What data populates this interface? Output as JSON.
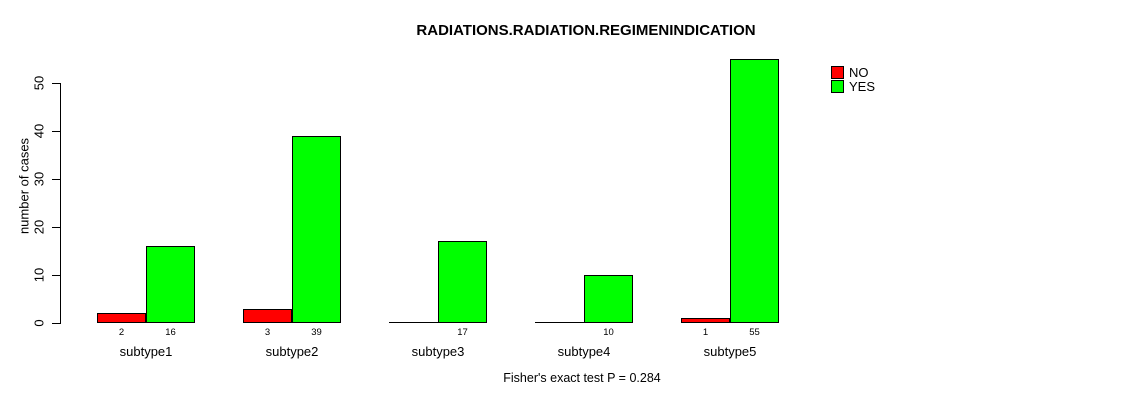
{
  "chart_data": {
    "type": "bar",
    "title": "RADIATIONS.RADIATION.REGIMENINDICATION",
    "ylabel": "number of cases",
    "xlabel": "",
    "categories": [
      "subtype1",
      "subtype2",
      "subtype3",
      "subtype4",
      "subtype5"
    ],
    "series": [
      {
        "name": "NO",
        "color": "#FF0000",
        "values": [
          2,
          3,
          0,
          0,
          1
        ],
        "bar_labels": [
          "2",
          "3",
          "",
          "",
          "1"
        ]
      },
      {
        "name": "YES",
        "color": "#00FF00",
        "values": [
          16,
          39,
          17,
          10,
          55
        ],
        "bar_labels": [
          "16",
          "39",
          "17",
          "10",
          "55"
        ]
      }
    ],
    "yticks": [
      0,
      10,
      20,
      30,
      40,
      50
    ],
    "ylim": [
      0,
      55
    ],
    "grid": false,
    "legend_position": "top-right outside plot",
    "annotation": "Fisher's exact test P = 0.284"
  }
}
